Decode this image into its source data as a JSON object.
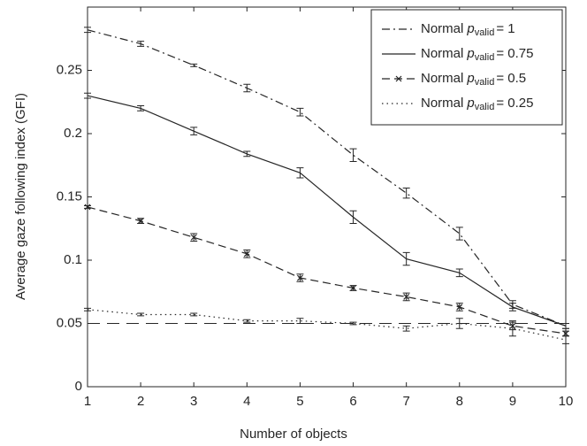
{
  "chart_data": {
    "type": "line",
    "xlabel": "Number of objects",
    "ylabel": "Average gaze following index (GFI)",
    "x": [
      1,
      2,
      3,
      4,
      5,
      6,
      7,
      8,
      9,
      10
    ],
    "xlim": [
      1,
      10
    ],
    "xticks": [
      1,
      2,
      3,
      4,
      5,
      6,
      7,
      8,
      9,
      10
    ],
    "ylim": [
      0,
      0.3
    ],
    "yticks": [
      0,
      0.05,
      0.1,
      0.15,
      0.2,
      0.25
    ],
    "reference_line": 0.05,
    "legend_position": "upper right",
    "series": [
      {
        "name": "Normal",
        "param": "p",
        "param_subscript": "valid",
        "param_label": "= 1",
        "color": "#262626",
        "dash": "dashdot",
        "marker": "none",
        "values": [
          0.282,
          0.271,
          0.254,
          0.236,
          0.217,
          0.183,
          0.153,
          0.121,
          0.065,
          0.048
        ],
        "errors": [
          0.002,
          0.002,
          0.001,
          0.003,
          0.003,
          0.005,
          0.004,
          0.005,
          0.003,
          0.002
        ]
      },
      {
        "name": "Normal",
        "param": "p",
        "param_subscript": "valid",
        "param_label": "= 0.75",
        "color": "#262626",
        "dash": "solid",
        "marker": "none",
        "values": [
          0.23,
          0.22,
          0.202,
          0.184,
          0.169,
          0.134,
          0.101,
          0.09,
          0.063,
          0.048
        ],
        "errors": [
          0.002,
          0.002,
          0.003,
          0.002,
          0.004,
          0.005,
          0.005,
          0.003,
          0.003,
          0.002
        ]
      },
      {
        "name": "Normal",
        "param": "p",
        "param_subscript": "valid",
        "param_label": "= 0.5",
        "color": "#262626",
        "dash": "dashed",
        "marker": "x",
        "values": [
          0.142,
          0.131,
          0.118,
          0.105,
          0.086,
          0.078,
          0.071,
          0.063,
          0.048,
          0.042
        ],
        "errors": [
          0.001,
          0.002,
          0.003,
          0.003,
          0.003,
          0.002,
          0.003,
          0.003,
          0.003,
          0.002
        ]
      },
      {
        "name": "Normal",
        "param": "p",
        "param_subscript": "valid",
        "param_label": "= 0.25",
        "color": "#262626",
        "dash": "dotted",
        "marker": "none",
        "values": [
          0.061,
          0.057,
          0.057,
          0.052,
          0.052,
          0.05,
          0.046,
          0.05,
          0.046,
          0.037
        ],
        "errors": [
          0.001,
          0.001,
          0.001,
          0.001,
          0.002,
          0.001,
          0.002,
          0.004,
          0.006,
          0.003
        ]
      }
    ]
  }
}
